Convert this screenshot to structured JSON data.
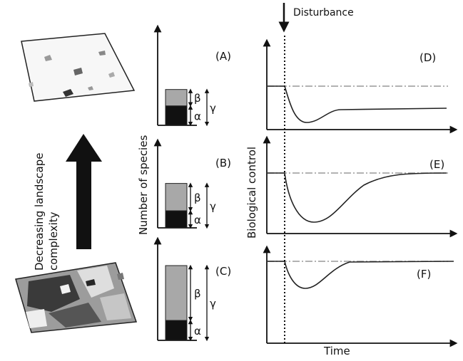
{
  "labels": {
    "disturbance": "Disturbance",
    "landscape_axis": "Decreasing landscape complexity",
    "landscape_axis_line1": "Decreasing landscape",
    "landscape_axis_line2": "complexity",
    "y_species": "Number of species",
    "y_control": "Biological control",
    "x_time": "Time"
  },
  "panels": {
    "a": "(A)",
    "b": "(B)",
    "c": "(C)",
    "d": "(D)",
    "e": "(E)",
    "f": "(F)"
  },
  "diversity": {
    "alpha": "α",
    "beta": "β",
    "gamma": "γ",
    "bars": [
      {
        "panel": "(A)",
        "alpha_level": 0.2,
        "beta_level": 0.17
      },
      {
        "panel": "(B)",
        "alpha_level": 0.2,
        "beta_level": 0.32
      },
      {
        "panel": "(C)",
        "alpha_level": 0.2,
        "beta_level": 0.55
      }
    ]
  },
  "colors": {
    "alpha_fill": "#111111",
    "beta_fill": "#a8a8a8",
    "baseline": "#999999"
  }
}
